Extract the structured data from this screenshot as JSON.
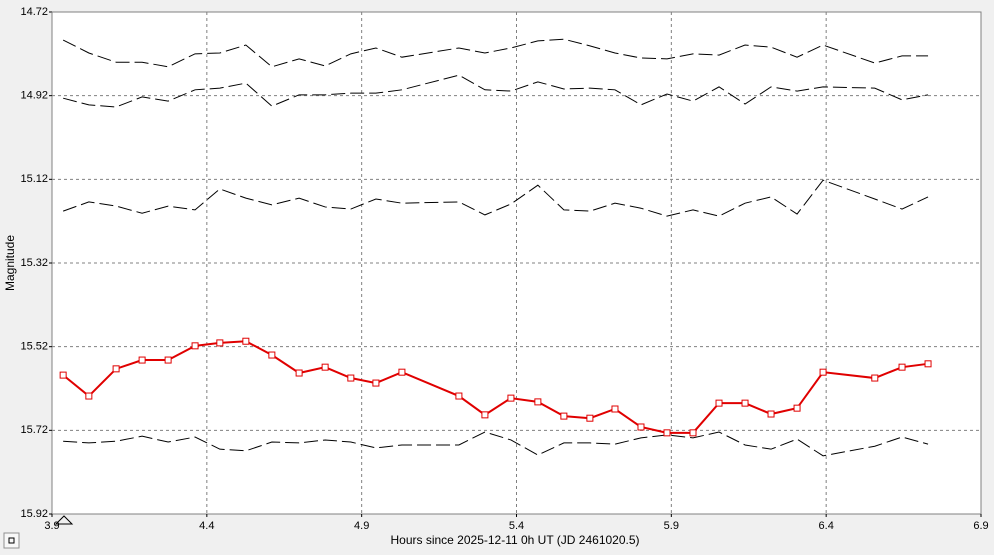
{
  "chart_data": {
    "type": "line",
    "xlabel": "Hours since 2025-12-11 0h UT (JD 2461020.5)",
    "ylabel": "Magnitude",
    "xlim": [
      3.9,
      6.9
    ],
    "xticks": [
      3.9,
      4.4,
      4.9,
      5.4,
      5.9,
      6.4,
      6.9
    ],
    "ylim": [
      15.92,
      14.72
    ],
    "yticks": [
      14.72,
      14.92,
      15.12,
      15.32,
      15.52,
      15.72,
      15.92
    ],
    "grid": true,
    "x": [
      3.936,
      4.019,
      4.107,
      4.191,
      4.275,
      4.362,
      4.442,
      4.526,
      4.61,
      4.698,
      4.782,
      4.865,
      4.946,
      5.03,
      5.214,
      5.298,
      5.382,
      5.469,
      5.553,
      5.637,
      5.718,
      5.802,
      5.886,
      5.97,
      6.054,
      6.138,
      6.222,
      6.306,
      6.39,
      6.557,
      6.645,
      6.729
    ],
    "series": [
      {
        "color": "#e00000",
        "dashed": false,
        "marker": "square",
        "values": [
          15.588,
          15.638,
          15.573,
          15.552,
          15.552,
          15.518,
          15.511,
          15.507,
          15.54,
          15.583,
          15.569,
          15.595,
          15.607,
          15.581,
          15.638,
          15.683,
          15.643,
          15.652,
          15.686,
          15.691,
          15.669,
          15.712,
          15.726,
          15.726,
          15.655,
          15.655,
          15.681,
          15.667,
          15.581,
          15.595,
          15.569,
          15.561
        ]
      },
      {
        "color": "#000000",
        "dashed": true,
        "values": [
          14.787,
          14.818,
          14.84,
          14.84,
          14.851,
          14.82,
          14.818,
          14.799,
          14.851,
          14.832,
          14.849,
          14.82,
          14.806,
          14.828,
          14.806,
          14.818,
          14.806,
          14.789,
          14.785,
          14.801,
          14.818,
          14.83,
          14.832,
          14.82,
          14.823,
          14.799,
          14.804,
          14.828,
          14.799,
          14.842,
          14.825,
          14.825
        ]
      },
      {
        "color": "#000000",
        "dashed": true,
        "values": [
          14.926,
          14.942,
          14.947,
          14.923,
          14.933,
          14.906,
          14.902,
          14.89,
          14.945,
          14.918,
          14.918,
          14.914,
          14.914,
          14.906,
          14.871,
          14.906,
          14.909,
          14.887,
          14.904,
          14.902,
          14.906,
          14.942,
          14.916,
          14.933,
          14.899,
          14.94,
          14.899,
          14.909,
          14.899,
          14.902,
          14.93,
          14.918
        ]
      },
      {
        "color": "#000000",
        "dashed": true,
        "values": [
          15.196,
          15.174,
          15.184,
          15.201,
          15.184,
          15.193,
          15.143,
          15.165,
          15.181,
          15.165,
          15.186,
          15.191,
          15.167,
          15.177,
          15.174,
          15.205,
          15.179,
          15.134,
          15.193,
          15.196,
          15.177,
          15.189,
          15.208,
          15.193,
          15.208,
          15.177,
          15.162,
          15.203,
          15.122,
          15.167,
          15.191,
          15.162
        ]
      },
      {
        "color": "#000000",
        "dashed": true,
        "values": [
          15.746,
          15.75,
          15.746,
          15.734,
          15.748,
          15.736,
          15.765,
          15.769,
          15.748,
          15.75,
          15.743,
          15.748,
          15.762,
          15.755,
          15.755,
          15.724,
          15.743,
          15.779,
          15.75,
          15.75,
          15.753,
          15.738,
          15.731,
          15.738,
          15.724,
          15.755,
          15.765,
          15.741,
          15.781,
          15.758,
          15.736,
          15.753
        ]
      }
    ]
  }
}
